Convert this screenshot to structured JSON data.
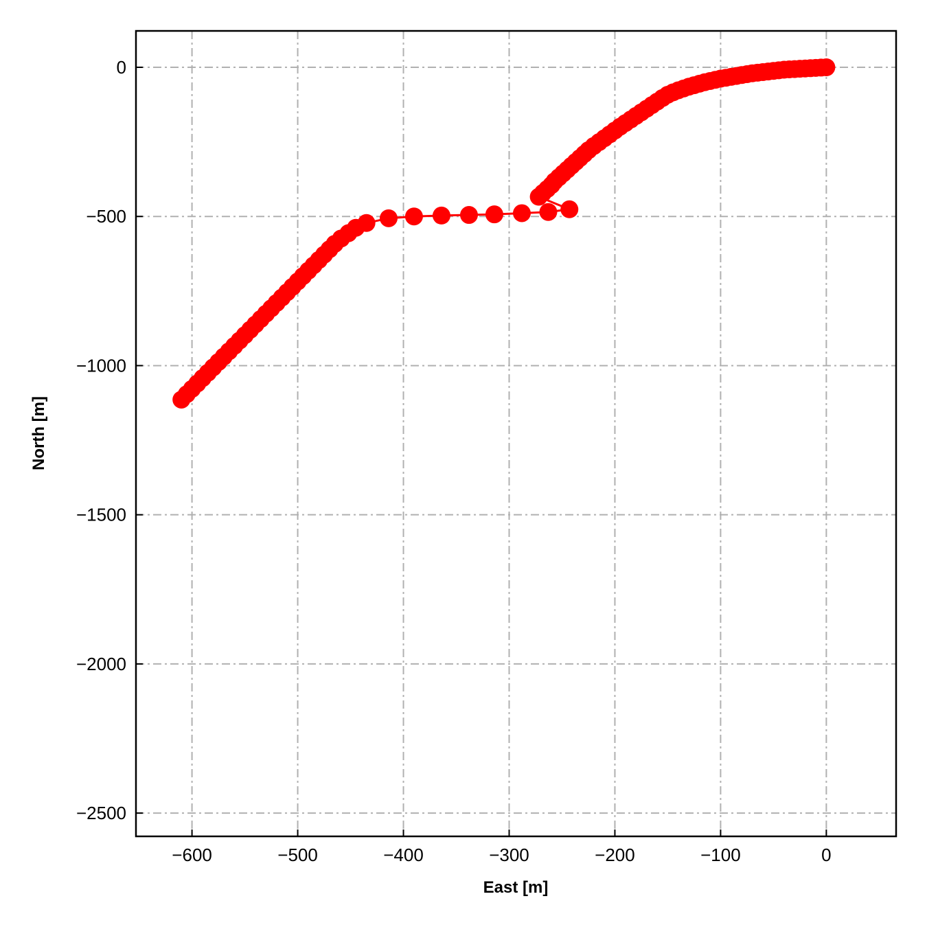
{
  "chart_data": {
    "type": "scatter",
    "title": "",
    "xlabel": "East [m]",
    "ylabel": "North [m]",
    "xlim": [
      -653,
      66
    ],
    "ylim": [
      -2578,
      122
    ],
    "xticks": [
      -600,
      -500,
      -400,
      -300,
      -200,
      -100,
      0
    ],
    "yticks": [
      0,
      -500,
      -1000,
      -1500,
      -2000,
      -2500
    ],
    "xtick_labels": [
      "−600",
      "−500",
      "−400",
      "−300",
      "−200",
      "−100",
      "0"
    ],
    "ytick_labels": [
      "0",
      "−500",
      "−1000",
      "−1500",
      "−2000",
      "−2500"
    ],
    "grid": true,
    "color": "#ff0000",
    "series": [
      {
        "style": "line-with-markers",
        "points": [
          [
            0,
            0
          ],
          [
            -5,
            -1
          ],
          [
            -10,
            -2
          ],
          [
            -15,
            -3
          ],
          [
            -20,
            -4
          ],
          [
            -25,
            -5
          ],
          [
            -30,
            -6
          ],
          [
            -35,
            -7
          ],
          [
            -40,
            -8
          ],
          [
            -45,
            -10
          ],
          [
            -50,
            -12
          ],
          [
            -55,
            -14
          ],
          [
            -60,
            -16
          ],
          [
            -65,
            -18
          ],
          [
            -70,
            -20
          ],
          [
            -75,
            -23
          ],
          [
            -80,
            -26
          ],
          [
            -85,
            -29
          ],
          [
            -90,
            -32
          ],
          [
            -95,
            -35
          ],
          [
            -100,
            -38
          ],
          [
            -105,
            -42
          ],
          [
            -110,
            -46
          ],
          [
            -115,
            -50
          ],
          [
            -120,
            -55
          ],
          [
            -125,
            -60
          ],
          [
            -130,
            -65
          ],
          [
            -135,
            -71
          ],
          [
            -140,
            -77
          ],
          [
            -145,
            -84
          ],
          [
            -150,
            -92
          ],
          [
            -155,
            -103
          ],
          [
            -160,
            -115
          ],
          [
            -165,
            -127
          ],
          [
            -170,
            -139
          ],
          [
            -175,
            -151
          ],
          [
            -180,
            -163
          ],
          [
            -185,
            -175
          ],
          [
            -190,
            -187
          ],
          [
            -195,
            -199
          ],
          [
            -200,
            -212
          ],
          [
            -205,
            -225
          ],
          [
            -210,
            -238
          ],
          [
            -215,
            -251
          ],
          [
            -220,
            -264
          ],
          [
            -225,
            -278
          ],
          [
            -229,
            -291
          ],
          [
            -233,
            -304
          ],
          [
            -237,
            -317
          ],
          [
            -241,
            -330
          ],
          [
            -245,
            -343
          ],
          [
            -249,
            -356
          ],
          [
            -253,
            -369
          ],
          [
            -257,
            -382
          ],
          [
            -260,
            -395
          ],
          [
            -264,
            -408
          ],
          [
            -268,
            -421
          ],
          [
            -272,
            -434
          ],
          [
            -243,
            -476
          ],
          [
            -263,
            -485
          ],
          [
            -288,
            -489
          ],
          [
            -314,
            -493
          ],
          [
            -338,
            -495
          ],
          [
            -364,
            -497
          ],
          [
            -390,
            -500
          ],
          [
            -414,
            -506
          ],
          [
            -435,
            -522
          ],
          [
            -445,
            -538
          ],
          [
            -452,
            -556
          ],
          [
            -459,
            -574
          ],
          [
            -465,
            -592
          ],
          [
            -470,
            -610
          ],
          [
            -475,
            -628
          ],
          [
            -480,
            -646
          ],
          [
            -485,
            -664
          ],
          [
            -490,
            -682
          ],
          [
            -495,
            -700
          ],
          [
            -500,
            -718
          ],
          [
            -505,
            -736
          ],
          [
            -510,
            -754
          ],
          [
            -515,
            -772
          ],
          [
            -520,
            -790
          ],
          [
            -525,
            -808
          ],
          [
            -530,
            -826
          ],
          [
            -535,
            -844
          ],
          [
            -540,
            -862
          ],
          [
            -545,
            -880
          ],
          [
            -550,
            -898
          ],
          [
            -555,
            -916
          ],
          [
            -560,
            -934
          ],
          [
            -565,
            -952
          ],
          [
            -570,
            -970
          ],
          [
            -575,
            -988
          ],
          [
            -580,
            -1006
          ],
          [
            -585,
            -1024
          ],
          [
            -590,
            -1042
          ],
          [
            -595,
            -1060
          ],
          [
            -600,
            -1078
          ],
          [
            -605,
            -1096
          ],
          [
            -610,
            -1114
          ]
        ]
      }
    ]
  }
}
